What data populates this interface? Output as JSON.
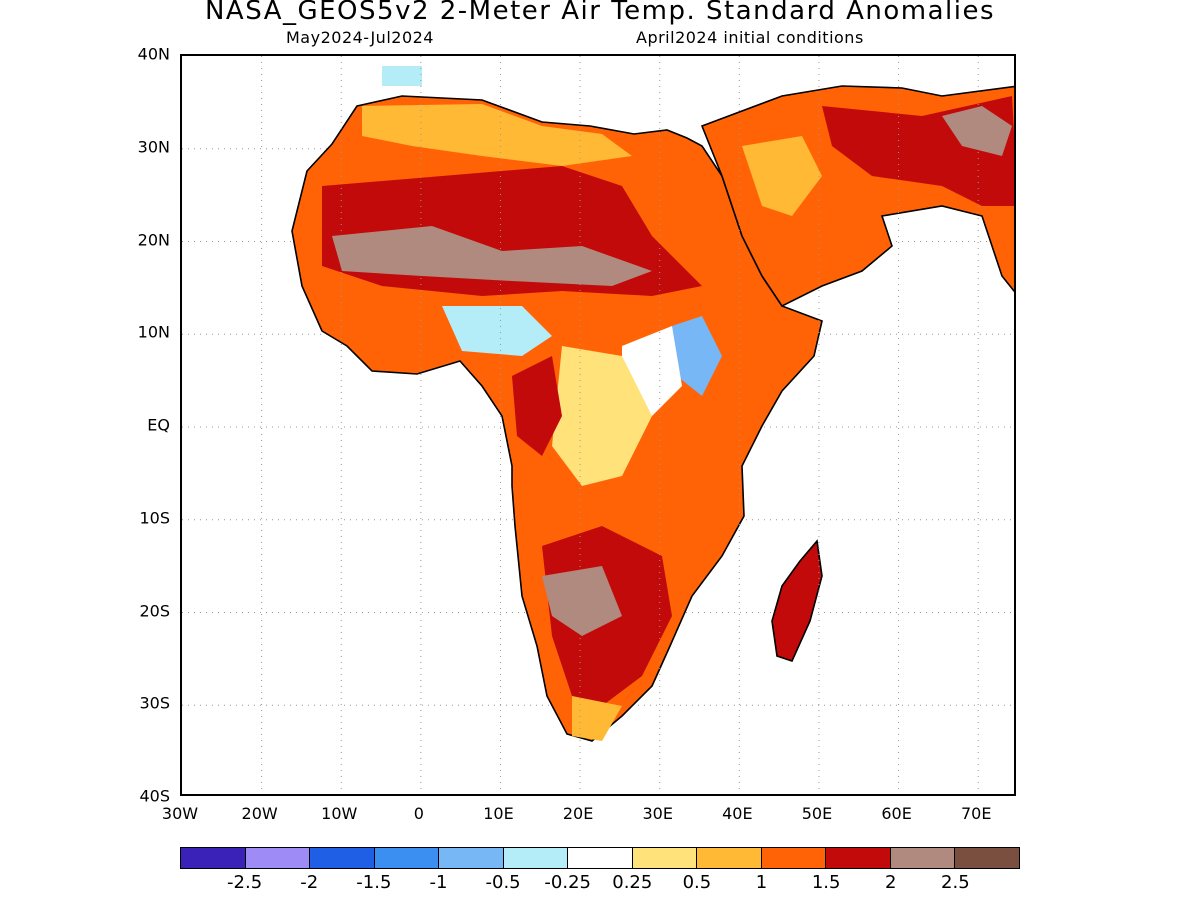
{
  "title": "NASA_GEOS5v2 2-Meter Air Temp. Standard Anomalies",
  "subtitle_period": "May2024-Jul2024",
  "subtitle_init": "April2024 initial conditions",
  "map": {
    "lat_labels": [
      "40N",
      "30N",
      "20N",
      "10N",
      "EQ",
      "10S",
      "20S",
      "30S",
      "40S"
    ],
    "lon_labels": [
      "30W",
      "20W",
      "10W",
      "0",
      "10E",
      "20E",
      "30E",
      "40E",
      "50E",
      "60E",
      "70E"
    ],
    "lat_range": [
      -40,
      40
    ],
    "lon_range": [
      -30,
      75
    ],
    "grid": true,
    "grid_style": "dotted",
    "colors": {
      "land_outline": "#000000",
      "ocean": "#ffffff"
    }
  },
  "legend": {
    "colors": [
      "#3a21b8",
      "#9e8bf5",
      "#1e5fe6",
      "#3b8ff0",
      "#78b7f6",
      "#b4ecf8",
      "#ffffff",
      "#ffe27a",
      "#ffb934",
      "#ff6306",
      "#c20a0a",
      "#b08a7e",
      "#7b4f40"
    ],
    "labels": [
      "-2.5",
      "-2",
      "-1.5",
      "-1",
      "-0.5",
      "-0.25",
      "0.25",
      "0.5",
      "1",
      "1.5",
      "2",
      "2.5"
    ]
  }
}
